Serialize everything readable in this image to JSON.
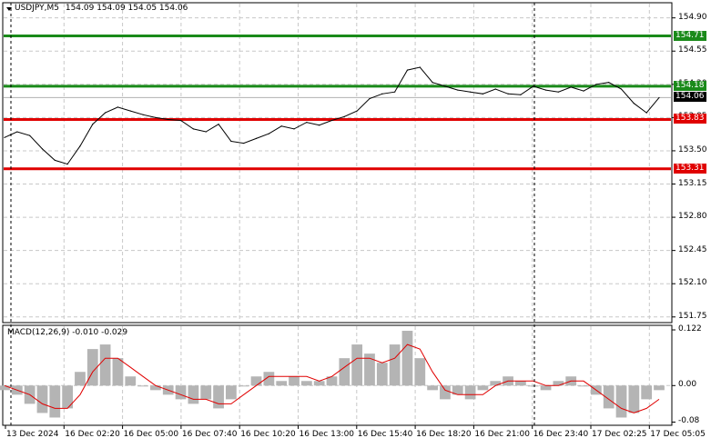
{
  "symbol_header": {
    "symbol": "USDJPY,M5",
    "ohlc": "154.09 154.09 154.05 154.06"
  },
  "indicator_header": {
    "label": "MACD(12,26,9) -0.010 -0.029"
  },
  "price_axis": {
    "ticks": [
      "154.90",
      "154.55",
      "154.20",
      "153.85",
      "153.50",
      "153.15",
      "152.80",
      "152.45",
      "152.10",
      "151.75"
    ]
  },
  "macd_axis": {
    "ticks": [
      "0.122",
      "0.00",
      "-0.08"
    ]
  },
  "time_axis": {
    "labels": [
      "13 Dec 2024",
      "16 Dec 02:20",
      "16 Dec 05:00",
      "16 Dec 07:40",
      "16 Dec 10:20",
      "16 Dec 13:00",
      "16 Dec 15:40",
      "16 Dec 18:20",
      "16 Dec 21:00",
      "16 Dec 23:40",
      "17 Dec 02:25",
      "17 Dec 05:05"
    ]
  },
  "levels": [
    {
      "price": "154.71",
      "color": "#1a8a1a"
    },
    {
      "price": "154.18",
      "color": "#1a8a1a"
    },
    {
      "price": "153.83",
      "color": "#e00000"
    },
    {
      "price": "153.31",
      "color": "#e00000"
    }
  ],
  "current_price": {
    "price": "154.06",
    "color": "#000000"
  },
  "chart_data": {
    "type": "line",
    "price_series": [
      153.64,
      153.7,
      153.66,
      153.52,
      153.4,
      153.36,
      153.55,
      153.78,
      153.9,
      153.96,
      153.92,
      153.88,
      153.85,
      153.83,
      153.82,
      153.73,
      153.7,
      153.78,
      153.6,
      153.58,
      153.63,
      153.68,
      153.76,
      153.73,
      153.8,
      153.77,
      153.82,
      153.86,
      153.92,
      154.05,
      154.1,
      154.12,
      154.35,
      154.38,
      154.22,
      154.18,
      154.14,
      154.12,
      154.1,
      154.15,
      154.1,
      154.09,
      154.18,
      154.14,
      154.12,
      154.17,
      154.13,
      154.2,
      154.22,
      154.15,
      154.0,
      153.9,
      154.06
    ],
    "macd_hist": [
      -0.01,
      -0.02,
      -0.04,
      -0.06,
      -0.07,
      -0.05,
      0.03,
      0.08,
      0.09,
      0.06,
      0.02,
      0.0,
      -0.01,
      -0.02,
      -0.03,
      -0.04,
      -0.03,
      -0.05,
      -0.03,
      0.0,
      0.02,
      0.03,
      0.01,
      0.02,
      0.01,
      0.01,
      0.02,
      0.06,
      0.09,
      0.07,
      0.05,
      0.09,
      0.12,
      0.06,
      -0.01,
      -0.03,
      -0.02,
      -0.03,
      -0.01,
      0.01,
      0.02,
      0.01,
      0.0,
      -0.01,
      0.01,
      0.02,
      0.0,
      -0.02,
      -0.05,
      -0.07,
      -0.06,
      -0.03,
      -0.01
    ],
    "macd_signal": [
      0.0,
      -0.01,
      -0.02,
      -0.04,
      -0.05,
      -0.05,
      -0.02,
      0.03,
      0.06,
      0.06,
      0.04,
      0.02,
      0.0,
      -0.01,
      -0.02,
      -0.03,
      -0.03,
      -0.04,
      -0.04,
      -0.02,
      0.0,
      0.02,
      0.02,
      0.02,
      0.02,
      0.01,
      0.02,
      0.04,
      0.06,
      0.06,
      0.05,
      0.06,
      0.09,
      0.08,
      0.03,
      -0.01,
      -0.02,
      -0.02,
      -0.02,
      0.0,
      0.01,
      0.01,
      0.01,
      0.0,
      0.0,
      0.01,
      0.01,
      -0.01,
      -0.03,
      -0.05,
      -0.06,
      -0.05,
      -0.03
    ],
    "price_ylim": [
      151.7,
      155.05
    ],
    "macd_ylim": [
      -0.085,
      0.13
    ]
  }
}
